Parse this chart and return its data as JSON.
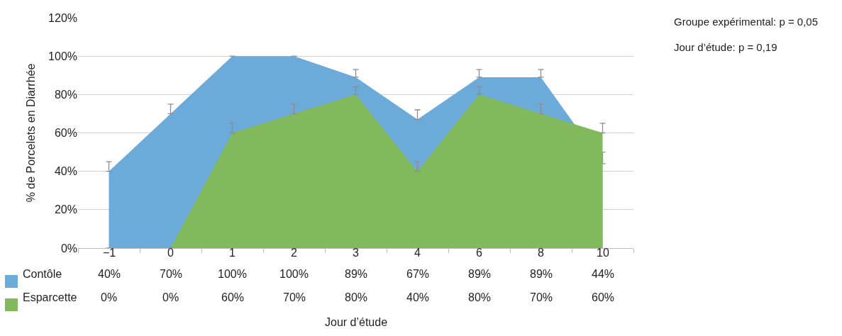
{
  "chart_data": {
    "type": "area",
    "ylabel": "% de Porcelets en Diarrhée",
    "categories": [
      "−1",
      "0",
      "1",
      "2",
      "3",
      "4",
      "6",
      "8",
      "10"
    ],
    "series": [
      {
        "name": "Contôle",
        "color": "#6cabd9",
        "values": [
          40,
          70,
          100,
          100,
          89,
          67,
          89,
          89,
          44
        ],
        "errors": [
          [
            40,
            45
          ],
          [
            70,
            75
          ],
          [
            100,
            100
          ],
          [
            100,
            100
          ],
          [
            89,
            93
          ],
          [
            67,
            72
          ],
          [
            89,
            93
          ],
          [
            89,
            93
          ],
          [
            44,
            50
          ]
        ],
        "value_labels": [
          "40%",
          "70%",
          "100%",
          "100%",
          "89%",
          "67%",
          "89%",
          "89%",
          "44%"
        ]
      },
      {
        "name": "Esparcette",
        "color": "#82b95c",
        "values": [
          0,
          0,
          60,
          70,
          80,
          40,
          80,
          70,
          60
        ],
        "errors": [
          [
            0,
            0
          ],
          [
            0,
            0
          ],
          [
            60,
            65
          ],
          [
            70,
            75
          ],
          [
            80,
            84
          ],
          [
            40,
            45
          ],
          [
            80,
            84
          ],
          [
            70,
            75
          ],
          [
            60,
            65
          ]
        ],
        "value_labels": [
          "0%",
          "0%",
          "60%",
          "70%",
          "80%",
          "40%",
          "80%",
          "70%",
          "60%"
        ]
      }
    ],
    "ylim": [
      0,
      120
    ],
    "yticks": [
      {
        "value": 0,
        "label": "0%"
      },
      {
        "value": 20,
        "label": "20%"
      },
      {
        "value": 40,
        "label": "40%"
      },
      {
        "value": 60,
        "label": "60%"
      },
      {
        "value": 80,
        "label": "80%"
      },
      {
        "value": 100,
        "label": "100%"
      },
      {
        "value": 120,
        "label": "120%"
      }
    ],
    "grid": "y",
    "legend": "bottom left",
    "annotations": [
      "Jour d’étude",
      "Groupe expérimental: p = 0,05",
      "Jour d’étude: p = 0,19"
    ]
  }
}
